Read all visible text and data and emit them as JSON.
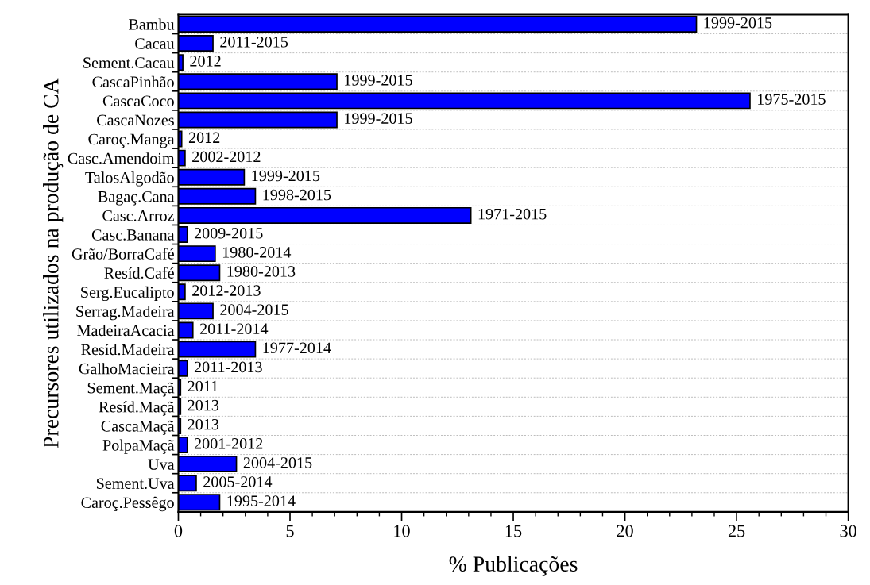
{
  "chart_data": {
    "type": "bar",
    "orientation": "horizontal",
    "xlabel": "% Publicações",
    "ylabel": "Precursores utilizados na produção de CA",
    "categories": [
      "Bambu",
      "Cacau",
      "Sement.Cacau",
      "CascaPinhão",
      "CascaCoco",
      "CascaNozes",
      "Caroç.Manga",
      "Casc.Amendoim",
      "TalosAlgodão",
      "Bagaç.Cana",
      "Casc.Arroz",
      "Casc.Banana",
      "Grão/BorraCafé",
      "Resíd.Café",
      "Serg.Eucalipto",
      "Serrag.Madeira",
      "MadeiraAcacia",
      "Resíd.Madeira",
      "GalhoMacieira",
      "Sement.Maçã",
      "Resíd.Maçã",
      "CascaMaçã",
      "PolpaMaçã",
      "Uva",
      "Sement.Uva",
      "Caroç.Pessêgo"
    ],
    "values": [
      23.2,
      1.55,
      0.2,
      7.1,
      25.6,
      7.1,
      0.15,
      0.3,
      2.95,
      3.45,
      13.1,
      0.4,
      1.65,
      1.85,
      0.3,
      1.55,
      0.65,
      3.45,
      0.4,
      0.1,
      0.1,
      0.1,
      0.4,
      2.6,
      0.8,
      1.85
    ],
    "color": "#0000ff",
    "xlim": [
      0,
      30
    ],
    "xticks": [
      0,
      5,
      10,
      15,
      20,
      25,
      30
    ],
    "grid": "y",
    "annotations": [
      {
        "text": "1999-2015",
        "x": 23.2,
        "y": "Bambu"
      },
      {
        "text": "2011-2015",
        "x": 1.55,
        "y": "Cacau"
      },
      {
        "text": "2012",
        "x": 0.2,
        "y": "Sement.Cacau"
      },
      {
        "text": "1999-2015",
        "x": 7.1,
        "y": "CascaPinhão"
      },
      {
        "text": "1975-2015",
        "x": 25.6,
        "y": "CascaCoco"
      },
      {
        "text": "1999-2015",
        "x": 7.1,
        "y": "CascaNozes"
      },
      {
        "text": "2012",
        "x": 0.15,
        "y": "Caroç.Manga"
      },
      {
        "text": "2002-2012",
        "x": 0.3,
        "y": "Casc.Amendoim"
      },
      {
        "text": "1999-2015",
        "x": 2.95,
        "y": "TalosAlgodão"
      },
      {
        "text": "1998-2015",
        "x": 3.45,
        "y": "Bagaç.Cana"
      },
      {
        "text": "1971-2015",
        "x": 13.1,
        "y": "Casc.Arroz"
      },
      {
        "text": "2009-2015",
        "x": 0.4,
        "y": "Casc.Banana"
      },
      {
        "text": "1980-2014",
        "x": 1.65,
        "y": "Grão/BorraCafé"
      },
      {
        "text": "1980-2013",
        "x": 1.85,
        "y": "Resíd.Café"
      },
      {
        "text": "2012-2013",
        "x": 0.3,
        "y": "Serg.Eucalipto"
      },
      {
        "text": "2004-2015",
        "x": 1.55,
        "y": "Serrag.Madeira"
      },
      {
        "text": "2011-2014",
        "x": 0.65,
        "y": "MadeiraAcacia"
      },
      {
        "text": "1977-2014",
        "x": 3.45,
        "y": "Resíd.Madeira"
      },
      {
        "text": "2011-2013",
        "x": 0.4,
        "y": "GalhoMacieira"
      },
      {
        "text": "2011",
        "x": 0.1,
        "y": "Sement.Maçã"
      },
      {
        "text": "2013",
        "x": 0.1,
        "y": "Resíd.Maçã"
      },
      {
        "text": "2013",
        "x": 0.1,
        "y": "CascaMaçã"
      },
      {
        "text": "2001-2012",
        "x": 0.4,
        "y": "PolpaMaçã"
      },
      {
        "text": "2004-2015",
        "x": 2.6,
        "y": "Uva"
      },
      {
        "text": "2005-2014",
        "x": 0.8,
        "y": "Sement.Uva"
      },
      {
        "text": "1995-2014",
        "x": 1.85,
        "y": "Caroç.Pessêgo"
      }
    ]
  }
}
